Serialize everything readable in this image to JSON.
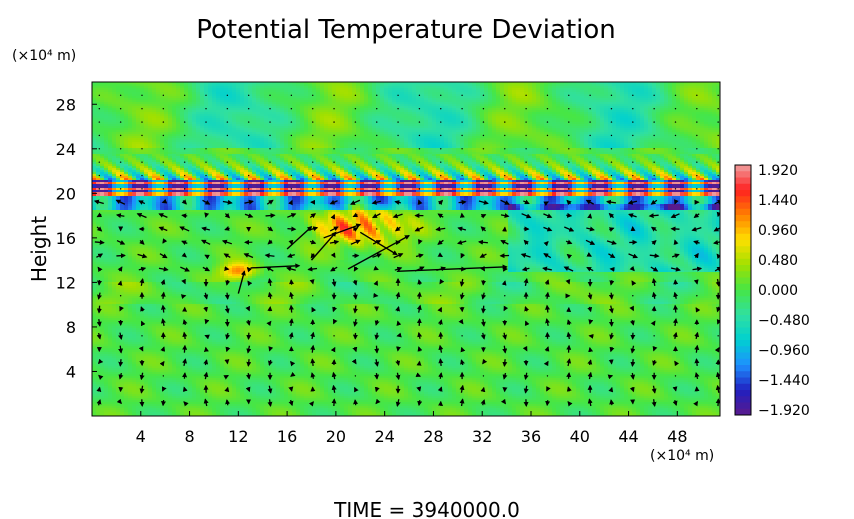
{
  "chart_data": {
    "type": "heatmap",
    "title": "Potential Temperature Deviation",
    "xlabel": "",
    "ylabel": "Height",
    "x_unit_label": "(×10⁴ m)",
    "y_unit_label": "(×10⁴ m)",
    "xlim": [
      0,
      51.5
    ],
    "ylim": [
      0,
      30
    ],
    "x_ticks": [
      4,
      8,
      12,
      16,
      20,
      24,
      28,
      32,
      36,
      40,
      44,
      48
    ],
    "y_ticks": [
      4,
      8,
      12,
      16,
      20,
      24,
      28
    ],
    "colorbar": {
      "ticks": [
        "1.920",
        "1.440",
        "0.960",
        "0.480",
        "0.000",
        "−0.480",
        "−0.960",
        "−1.440",
        "−1.920"
      ],
      "range": [
        -1.92,
        1.92
      ],
      "colors": [
        "#5a1a8c",
        "#2020c0",
        "#1e90ff",
        "#00d0d0",
        "#30e0a0",
        "#46e646",
        "#a0e000",
        "#ffe000",
        "#ff8000",
        "#ff2020",
        "#f0a0a0"
      ]
    },
    "field_description_bands": [
      {
        "y_from": 19.8,
        "y_to": 21.2,
        "pattern": "alternating strong positive/negative stripes"
      },
      {
        "y_from": 14,
        "y_to": 18.5,
        "x_from": 17,
        "x_to": 27,
        "pattern": "positive anomaly"
      }
    ],
    "background_value": 0.0,
    "footer": "TIME  =  3940000.0"
  }
}
